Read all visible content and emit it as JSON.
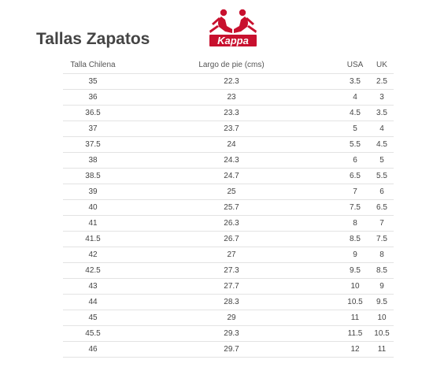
{
  "page": {
    "title": "Tallas Zapatos"
  },
  "logo": {
    "brand_text": "Kappa",
    "icon": "kappa-logo-icon",
    "color": "#c8102e"
  },
  "table": {
    "headers": [
      "Talla Chilena",
      "Largo de pie (cms)",
      "USA",
      "UK"
    ],
    "rows": [
      [
        "35",
        "22.3",
        "3.5",
        "2.5"
      ],
      [
        "36",
        "23",
        "4",
        "3"
      ],
      [
        "36.5",
        "23.3",
        "4.5",
        "3.5"
      ],
      [
        "37",
        "23.7",
        "5",
        "4"
      ],
      [
        "37.5",
        "24",
        "5.5",
        "4.5"
      ],
      [
        "38",
        "24.3",
        "6",
        "5"
      ],
      [
        "38.5",
        "24.7",
        "6.5",
        "5.5"
      ],
      [
        "39",
        "25",
        "7",
        "6"
      ],
      [
        "40",
        "25.7",
        "7.5",
        "6.5"
      ],
      [
        "41",
        "26.3",
        "8",
        "7"
      ],
      [
        "41.5",
        "26.7",
        "8.5",
        "7.5"
      ],
      [
        "42",
        "27",
        "9",
        "8"
      ],
      [
        "42.5",
        "27.3",
        "9.5",
        "8.5"
      ],
      [
        "43",
        "27.7",
        "10",
        "9"
      ],
      [
        "44",
        "28.3",
        "10.5",
        "9.5"
      ],
      [
        "45",
        "29",
        "11",
        "10"
      ],
      [
        "45.5",
        "29.3",
        "11.5",
        "10.5"
      ],
      [
        "46",
        "29.7",
        "12",
        "11"
      ]
    ]
  }
}
